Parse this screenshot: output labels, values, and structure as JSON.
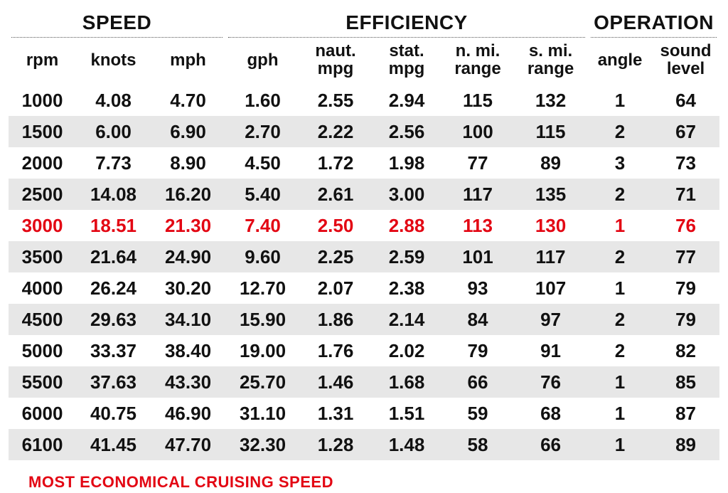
{
  "table": {
    "type": "table",
    "background_color": "#ffffff",
    "alt_row_color": "#e7e7e7",
    "text_color": "#111111",
    "highlight_color": "#e30613",
    "header_fontsize": 28,
    "subheader_fontsize": 24,
    "cell_fontsize": 26,
    "font_weight": 800,
    "groups": [
      {
        "label": "SPEED",
        "span": 3
      },
      {
        "label": "EFFICIENCY",
        "span": 5
      },
      {
        "label": "OPERATION",
        "span": 2
      }
    ],
    "columns": [
      {
        "key": "rpm",
        "label": "rpm"
      },
      {
        "key": "knots",
        "label": "knots"
      },
      {
        "key": "mph",
        "label": "mph"
      },
      {
        "key": "gph",
        "label": "gph"
      },
      {
        "key": "nmpg",
        "label": "naut.\nmpg"
      },
      {
        "key": "smpg",
        "label": "stat.\nmpg"
      },
      {
        "key": "nmir",
        "label": "n. mi.\nrange"
      },
      {
        "key": "smir",
        "label": "s. mi.\nrange"
      },
      {
        "key": "angle",
        "label": "angle"
      },
      {
        "key": "sound",
        "label": "sound\nlevel"
      }
    ],
    "highlight_row_index": 4,
    "rows": [
      [
        "1000",
        "4.08",
        "4.70",
        "1.60",
        "2.55",
        "2.94",
        "115",
        "132",
        "1",
        "64"
      ],
      [
        "1500",
        "6.00",
        "6.90",
        "2.70",
        "2.22",
        "2.56",
        "100",
        "115",
        "2",
        "67"
      ],
      [
        "2000",
        "7.73",
        "8.90",
        "4.50",
        "1.72",
        "1.98",
        "77",
        "89",
        "3",
        "73"
      ],
      [
        "2500",
        "14.08",
        "16.20",
        "5.40",
        "2.61",
        "3.00",
        "117",
        "135",
        "2",
        "71"
      ],
      [
        "3000",
        "18.51",
        "21.30",
        "7.40",
        "2.50",
        "2.88",
        "113",
        "130",
        "1",
        "76"
      ],
      [
        "3500",
        "21.64",
        "24.90",
        "9.60",
        "2.25",
        "2.59",
        "101",
        "117",
        "2",
        "77"
      ],
      [
        "4000",
        "26.24",
        "30.20",
        "12.70",
        "2.07",
        "2.38",
        "93",
        "107",
        "1",
        "79"
      ],
      [
        "4500",
        "29.63",
        "34.10",
        "15.90",
        "1.86",
        "2.14",
        "84",
        "97",
        "2",
        "79"
      ],
      [
        "5000",
        "33.37",
        "38.40",
        "19.00",
        "1.76",
        "2.02",
        "79",
        "91",
        "2",
        "82"
      ],
      [
        "5500",
        "37.63",
        "43.30",
        "25.70",
        "1.46",
        "1.68",
        "66",
        "76",
        "1",
        "85"
      ],
      [
        "6000",
        "40.75",
        "46.90",
        "31.10",
        "1.31",
        "1.51",
        "59",
        "68",
        "1",
        "87"
      ],
      [
        "6100",
        "41.45",
        "47.70",
        "32.30",
        "1.28",
        "1.48",
        "58",
        "66",
        "1",
        "89"
      ]
    ]
  },
  "footer_note": "MOST ECONOMICAL CRUISING SPEED"
}
